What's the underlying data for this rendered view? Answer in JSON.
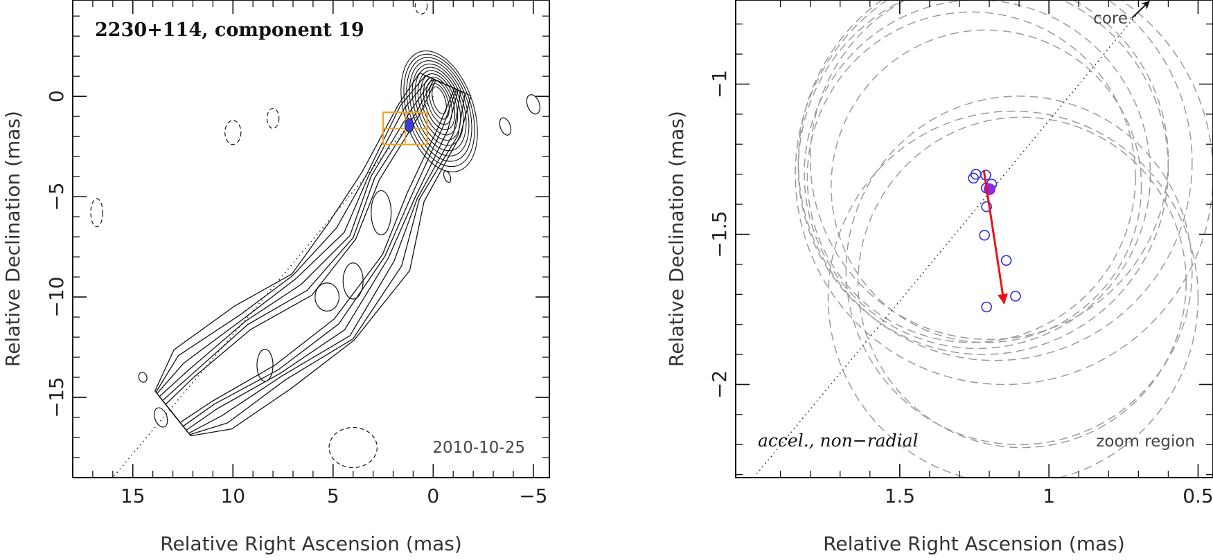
{
  "chart_data": [
    {
      "type": "contour",
      "title": "2230+114, component 19",
      "xlabel": "Relative Right Ascension (mas)",
      "ylabel": "Relative Declination (mas)",
      "xlim": [
        18,
        -5.8
      ],
      "ylim": [
        -19,
        4.8
      ],
      "xticks": [
        15,
        10,
        5,
        0,
        -5
      ],
      "xtick_labels": [
        "15",
        "10",
        "5",
        "0",
        "−5"
      ],
      "yticks": [
        0,
        -5,
        -10,
        -15
      ],
      "ytick_labels": [
        "0",
        "−5",
        "−10",
        "−15"
      ],
      "date": "2010-10-25",
      "component_position": [
        1.2,
        -1.45
      ],
      "zoom_box": {
        "x": [
          2.5,
          0.3
        ],
        "y": [
          -0.8,
          -2.4
        ]
      },
      "jet_axis": [
        [
          0,
          0
        ],
        [
          16,
          -19
        ]
      ]
    },
    {
      "type": "scatter",
      "xlabel": "Relative Right Ascension (mas)",
      "ylabel": "Relative Declination (mas)",
      "xlim": [
        2.05,
        0.45
      ],
      "ylim": [
        -2.31,
        -0.72
      ],
      "xticks": [
        1.5,
        1,
        0.5
      ],
      "xtick_labels": [
        "1.5",
        "1",
        "0.5"
      ],
      "yticks": [
        -1,
        -1.5,
        -2
      ],
      "ytick_labels": [
        "−1",
        "−1.5",
        "−2"
      ],
      "core_label": "core",
      "motion_label": "accel., non−radial",
      "region_label": "zoom region",
      "epochs": [
        {
          "x": 1.245,
          "y": -1.3
        },
        {
          "x": 1.253,
          "y": -1.313
        },
        {
          "x": 1.212,
          "y": -1.303
        },
        {
          "x": 1.192,
          "y": -1.333
        },
        {
          "x": 1.21,
          "y": -1.346
        },
        {
          "x": 1.209,
          "y": -1.408
        },
        {
          "x": 1.216,
          "y": -1.503
        },
        {
          "x": 1.143,
          "y": -1.587
        },
        {
          "x": 1.112,
          "y": -1.706
        },
        {
          "x": 1.209,
          "y": -1.742
        }
      ],
      "reference_epoch": {
        "x": 1.199,
        "y": -1.35
      },
      "motion_vector": {
        "from": [
          1.218,
          -1.288
        ],
        "to": [
          1.15,
          -1.73
        ]
      },
      "beam_circles": [
        {
          "cx": 1.24,
          "cy": -1.3,
          "r": 0.58
        },
        {
          "cx": 1.22,
          "cy": -1.28,
          "r": 0.62
        },
        {
          "cx": 1.2,
          "cy": -1.25,
          "r": 0.6
        },
        {
          "cx": 1.26,
          "cy": -1.31,
          "r": 0.55
        },
        {
          "cx": 1.18,
          "cy": -1.26,
          "r": 0.66
        },
        {
          "cx": 1.21,
          "cy": -1.34,
          "r": 0.52
        },
        {
          "cx": 1.15,
          "cy": -1.3,
          "r": 0.7
        },
        {
          "cx": 1.09,
          "cy": -1.66,
          "r": 0.55
        },
        {
          "cx": 1.12,
          "cy": -1.71,
          "r": 0.62
        },
        {
          "cx": 1.1,
          "cy": -1.62,
          "r": 0.58
        }
      ],
      "colors": {
        "epoch": "#2a2ae6",
        "reference": "#8a2be2",
        "vector": "#ee1111",
        "beam": "#9a9a9a",
        "box": "#f2a21e"
      }
    }
  ]
}
